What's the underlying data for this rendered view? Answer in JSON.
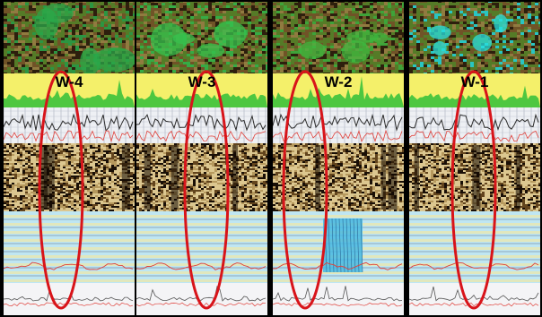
{
  "wells": [
    {
      "label": "W-4",
      "seed": 11,
      "accent": "#2aa84a"
    },
    {
      "label": "W-3",
      "seed": 23,
      "accent": "#35c24d"
    },
    {
      "label": "W-2",
      "seed": 37,
      "accent": "#3fb83f"
    },
    {
      "label": "W-1",
      "seed": 53,
      "accent": "#27e0e0"
    }
  ],
  "colors": {
    "highlight_ellipse": "#d8141a",
    "amplitude_band": "#f4f06a",
    "amplitude_fill": "#3cc23c",
    "log_track_bg": "#eef0f4",
    "log_curve": "#2b2b2b",
    "log_curve_red": "#e0403a",
    "seismic_light": "#f2dca0",
    "seismic_dark": "#1a1008",
    "lower_track_bg": "#bfe6f2",
    "lower_track_blue": "#49b8e0",
    "stripe_yellow": "#f0e7a6"
  }
}
